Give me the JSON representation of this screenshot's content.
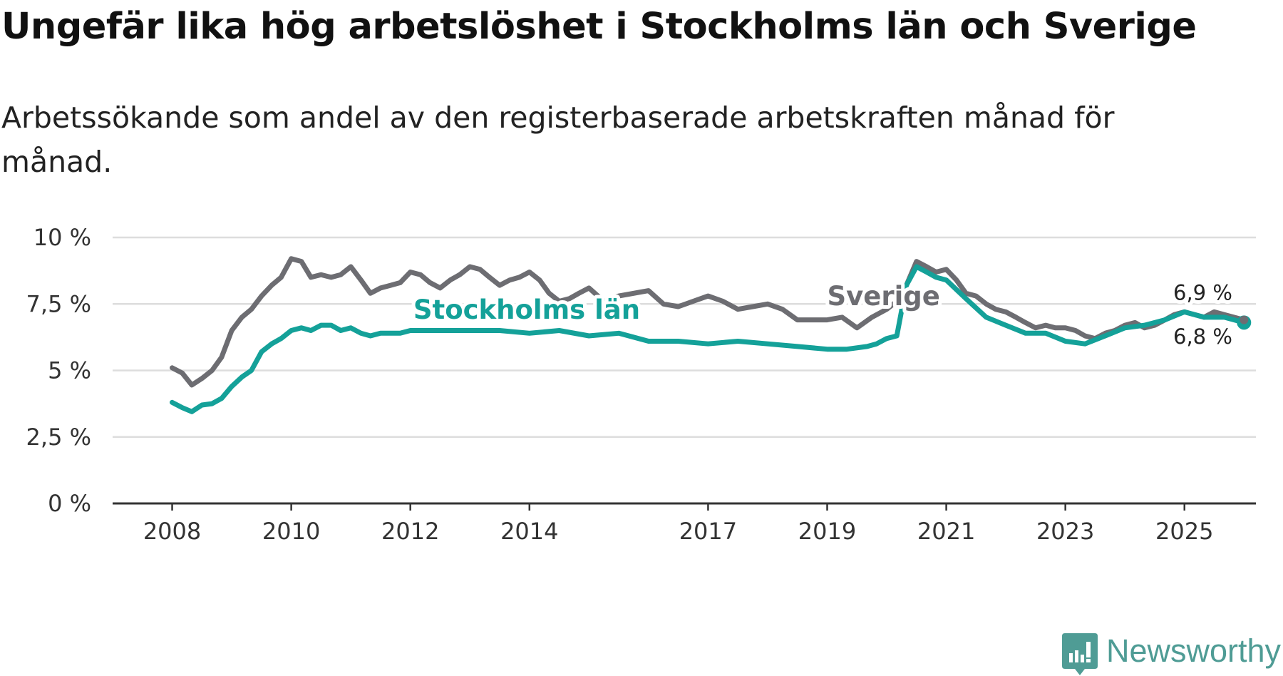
{
  "title": "Ungefär lika hög arbetslöshet i Stockholms län och Sverige",
  "subtitle": "Arbetssökande som andel av den registerbaserade arbetskraften månad för månad.",
  "brand": {
    "name": "Newsworthy",
    "icon": "newsworthy-logo-icon",
    "color": "#4f9c95"
  },
  "colors": {
    "stockholm": "#14a199",
    "sverige": "#6d6d72",
    "grid": "#dddddd",
    "axis": "#333333"
  },
  "chart_data": {
    "type": "line",
    "title": "Ungefär lika hög arbetslöshet i Stockholms län och Sverige",
    "xlabel": "",
    "ylabel": "",
    "ylim": [
      0,
      10
    ],
    "y_ticks": [
      0,
      2.5,
      5,
      7.5,
      10
    ],
    "y_tick_labels": [
      "0 %",
      "2,5 %",
      "5 %",
      "7,5 %",
      "10 %"
    ],
    "x_ticks": [
      2008,
      2010,
      2012,
      2014,
      2017,
      2019,
      2021,
      2023,
      2025
    ],
    "x_tick_labels": [
      "2008",
      "2010",
      "2012",
      "2014",
      "2017",
      "2019",
      "2021",
      "2023",
      "2025"
    ],
    "x_range": [
      2007.0,
      2026.2
    ],
    "series": [
      {
        "name": "Stockholms län",
        "label": "Stockholms län",
        "end_label": "6,8 %",
        "x": [
          2008.0,
          2008.17,
          2008.33,
          2008.5,
          2008.67,
          2008.83,
          2009.0,
          2009.17,
          2009.33,
          2009.5,
          2009.67,
          2009.83,
          2010.0,
          2010.17,
          2010.33,
          2010.5,
          2010.67,
          2010.83,
          2011.0,
          2011.17,
          2011.33,
          2011.5,
          2011.67,
          2011.83,
          2012.0,
          2012.5,
          2013.0,
          2013.5,
          2014.0,
          2014.5,
          2015.0,
          2015.5,
          2016.0,
          2016.5,
          2017.0,
          2017.5,
          2018.0,
          2018.5,
          2019.0,
          2019.33,
          2019.67,
          2019.83,
          2020.0,
          2020.17,
          2020.33,
          2020.5,
          2020.67,
          2020.83,
          2021.0,
          2021.33,
          2021.67,
          2022.0,
          2022.33,
          2022.67,
          2023.0,
          2023.33,
          2023.67,
          2024.0,
          2024.33,
          2024.67,
          2025.0,
          2025.33,
          2025.67,
          2026.0
        ],
        "values": [
          3.8,
          3.6,
          3.45,
          3.7,
          3.75,
          3.95,
          4.4,
          4.75,
          5.0,
          5.7,
          6.0,
          6.2,
          6.5,
          6.6,
          6.5,
          6.7,
          6.7,
          6.5,
          6.6,
          6.4,
          6.3,
          6.4,
          6.4,
          6.4,
          6.5,
          6.5,
          6.5,
          6.5,
          6.4,
          6.5,
          6.3,
          6.4,
          6.1,
          6.1,
          6.0,
          6.1,
          6.0,
          5.9,
          5.8,
          5.8,
          5.9,
          6.0,
          6.2,
          6.3,
          8.2,
          8.9,
          8.7,
          8.5,
          8.4,
          7.7,
          7.0,
          6.7,
          6.4,
          6.4,
          6.1,
          6.0,
          6.3,
          6.6,
          6.7,
          6.9,
          7.2,
          7.0,
          7.0,
          6.8
        ]
      },
      {
        "name": "Sverige",
        "label": "Sverige",
        "end_label": "6,9 %",
        "x": [
          2008.0,
          2008.17,
          2008.33,
          2008.5,
          2008.67,
          2008.83,
          2009.0,
          2009.17,
          2009.33,
          2009.5,
          2009.67,
          2009.83,
          2010.0,
          2010.17,
          2010.33,
          2010.5,
          2010.67,
          2010.83,
          2011.0,
          2011.17,
          2011.33,
          2011.5,
          2011.67,
          2011.83,
          2012.0,
          2012.17,
          2012.33,
          2012.5,
          2012.67,
          2012.83,
          2013.0,
          2013.17,
          2013.33,
          2013.5,
          2013.67,
          2013.83,
          2014.0,
          2014.17,
          2014.33,
          2014.5,
          2014.67,
          2014.83,
          2015.0,
          2015.25,
          2015.5,
          2015.75,
          2016.0,
          2016.25,
          2016.5,
          2016.75,
          2017.0,
          2017.25,
          2017.5,
          2017.75,
          2018.0,
          2018.25,
          2018.5,
          2018.75,
          2019.0,
          2019.25,
          2019.5,
          2019.75,
          2020.0,
          2020.17,
          2020.33,
          2020.5,
          2020.67,
          2020.83,
          2021.0,
          2021.17,
          2021.33,
          2021.5,
          2021.67,
          2021.83,
          2022.0,
          2022.17,
          2022.33,
          2022.5,
          2022.67,
          2022.83,
          2023.0,
          2023.17,
          2023.33,
          2023.5,
          2023.67,
          2023.83,
          2024.0,
          2024.17,
          2024.33,
          2024.5,
          2024.67,
          2024.83,
          2025.0,
          2025.17,
          2025.33,
          2025.5,
          2025.67,
          2025.83,
          2026.0
        ],
        "values": [
          5.1,
          4.9,
          4.45,
          4.7,
          5.0,
          5.5,
          6.5,
          7.0,
          7.3,
          7.8,
          8.2,
          8.5,
          9.2,
          9.1,
          8.5,
          8.6,
          8.5,
          8.6,
          8.9,
          8.4,
          7.9,
          8.1,
          8.2,
          8.3,
          8.7,
          8.6,
          8.3,
          8.1,
          8.4,
          8.6,
          8.9,
          8.8,
          8.5,
          8.2,
          8.4,
          8.5,
          8.7,
          8.4,
          7.9,
          7.6,
          7.7,
          7.9,
          8.1,
          7.6,
          7.8,
          7.9,
          8.0,
          7.5,
          7.4,
          7.6,
          7.8,
          7.6,
          7.3,
          7.4,
          7.5,
          7.3,
          6.9,
          6.9,
          6.9,
          7.0,
          6.6,
          7.0,
          7.3,
          7.6,
          8.2,
          9.1,
          8.9,
          8.7,
          8.8,
          8.4,
          7.9,
          7.8,
          7.5,
          7.3,
          7.2,
          7.0,
          6.8,
          6.6,
          6.7,
          6.6,
          6.6,
          6.5,
          6.3,
          6.2,
          6.4,
          6.5,
          6.7,
          6.8,
          6.6,
          6.7,
          6.9,
          7.1,
          7.2,
          7.1,
          7.0,
          7.2,
          7.1,
          7.0,
          6.9
        ]
      }
    ]
  }
}
